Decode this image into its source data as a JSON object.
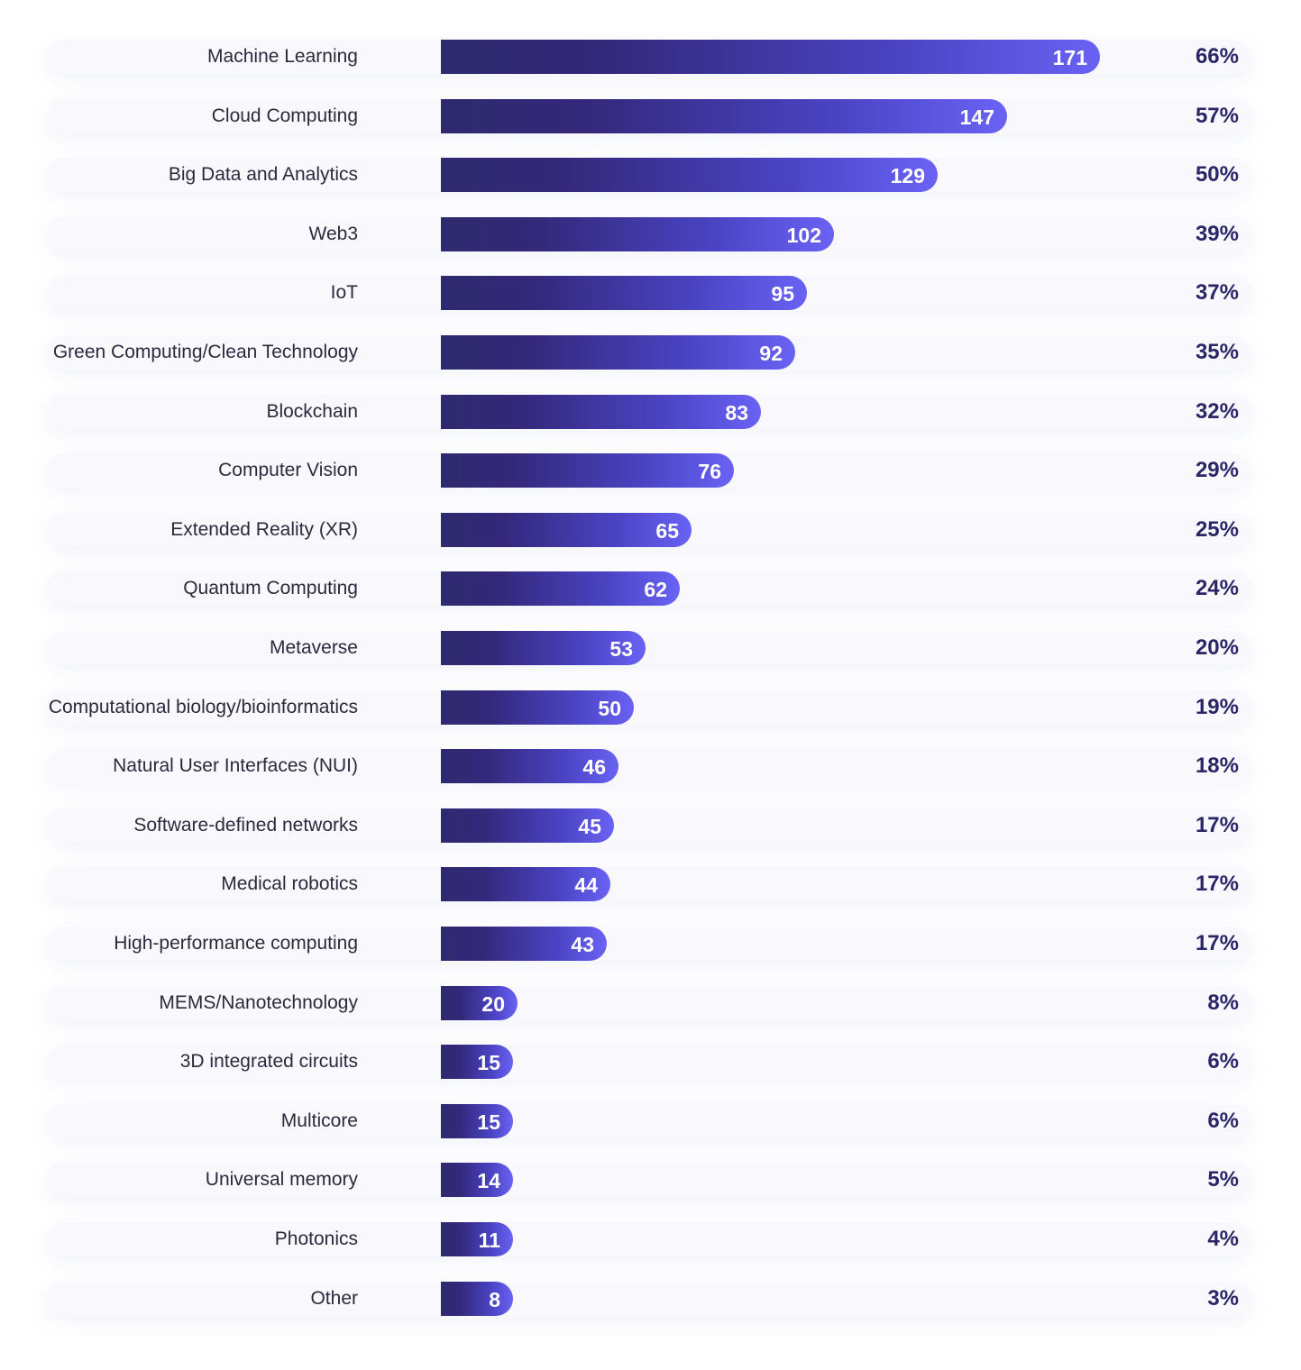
{
  "chart_data": {
    "type": "bar",
    "orientation": "horizontal",
    "categories": [
      "Machine Learning",
      "Cloud Computing",
      "Big Data and Analytics",
      "Web3",
      "IoT",
      "Green Computing/Clean Technology",
      "Blockchain",
      "Computer Vision",
      "Extended Reality (XR)",
      "Quantum Computing",
      "Metaverse",
      "Computational biology/bioinformatics",
      "Natural User Interfaces (NUI)",
      "Software-defined networks",
      "Medical robotics",
      "High-performance computing",
      "MEMS/Nanotechnology",
      "3D integrated circuits",
      "Multicore",
      "Universal memory",
      "Photonics",
      "Other"
    ],
    "values": [
      171,
      147,
      129,
      102,
      95,
      92,
      83,
      76,
      65,
      62,
      53,
      50,
      46,
      45,
      44,
      43,
      20,
      15,
      15,
      14,
      11,
      8
    ],
    "percentages": [
      "66%",
      "57%",
      "50%",
      "39%",
      "37%",
      "35%",
      "32%",
      "29%",
      "25%",
      "24%",
      "20%",
      "19%",
      "18%",
      "17%",
      "17%",
      "17%",
      "8%",
      "6%",
      "6%",
      "5%",
      "4%",
      "3%"
    ],
    "title": "",
    "xlabel": "",
    "ylabel": "",
    "xlim": [
      0,
      171
    ],
    "grid": false,
    "legend": "none",
    "colors": {
      "bar_start": "#2e2a6e",
      "bar_end": "#6a62f4",
      "row_background": "#f9f8fc",
      "label_text": "#2b2a3d",
      "value_text": "#ffffff",
      "percent_text": "#2a2668"
    }
  }
}
